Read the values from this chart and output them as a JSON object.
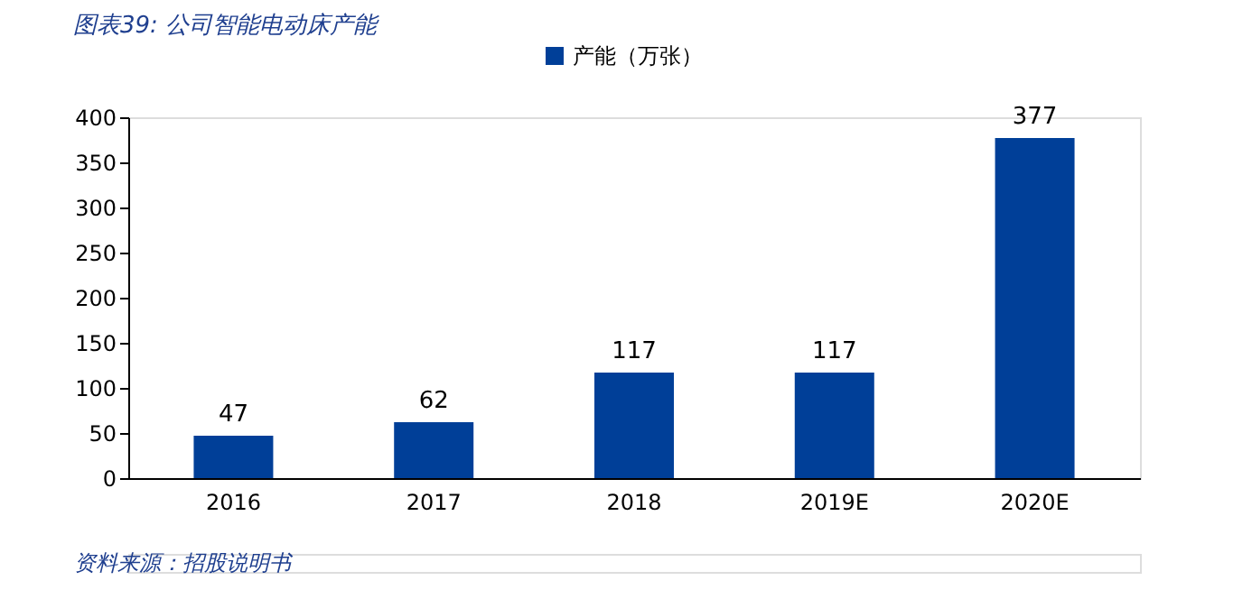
{
  "chart_data": {
    "type": "bar",
    "title": "图表39: 公司智能电动床产能",
    "categories": [
      "2016",
      "2017",
      "2018",
      "2019E",
      "2020E"
    ],
    "series": [
      {
        "name": "产能（万张）",
        "color": "#003f98",
        "values": [
          47,
          62,
          117,
          117,
          377
        ]
      }
    ],
    "ylim": [
      0,
      400
    ],
    "yticks": [
      0,
      50,
      100,
      150,
      200,
      250,
      300,
      350,
      400
    ],
    "data_labels": true,
    "grid": false,
    "legend": "top",
    "annotations": [
      "资料来源：招股说明书"
    ]
  }
}
